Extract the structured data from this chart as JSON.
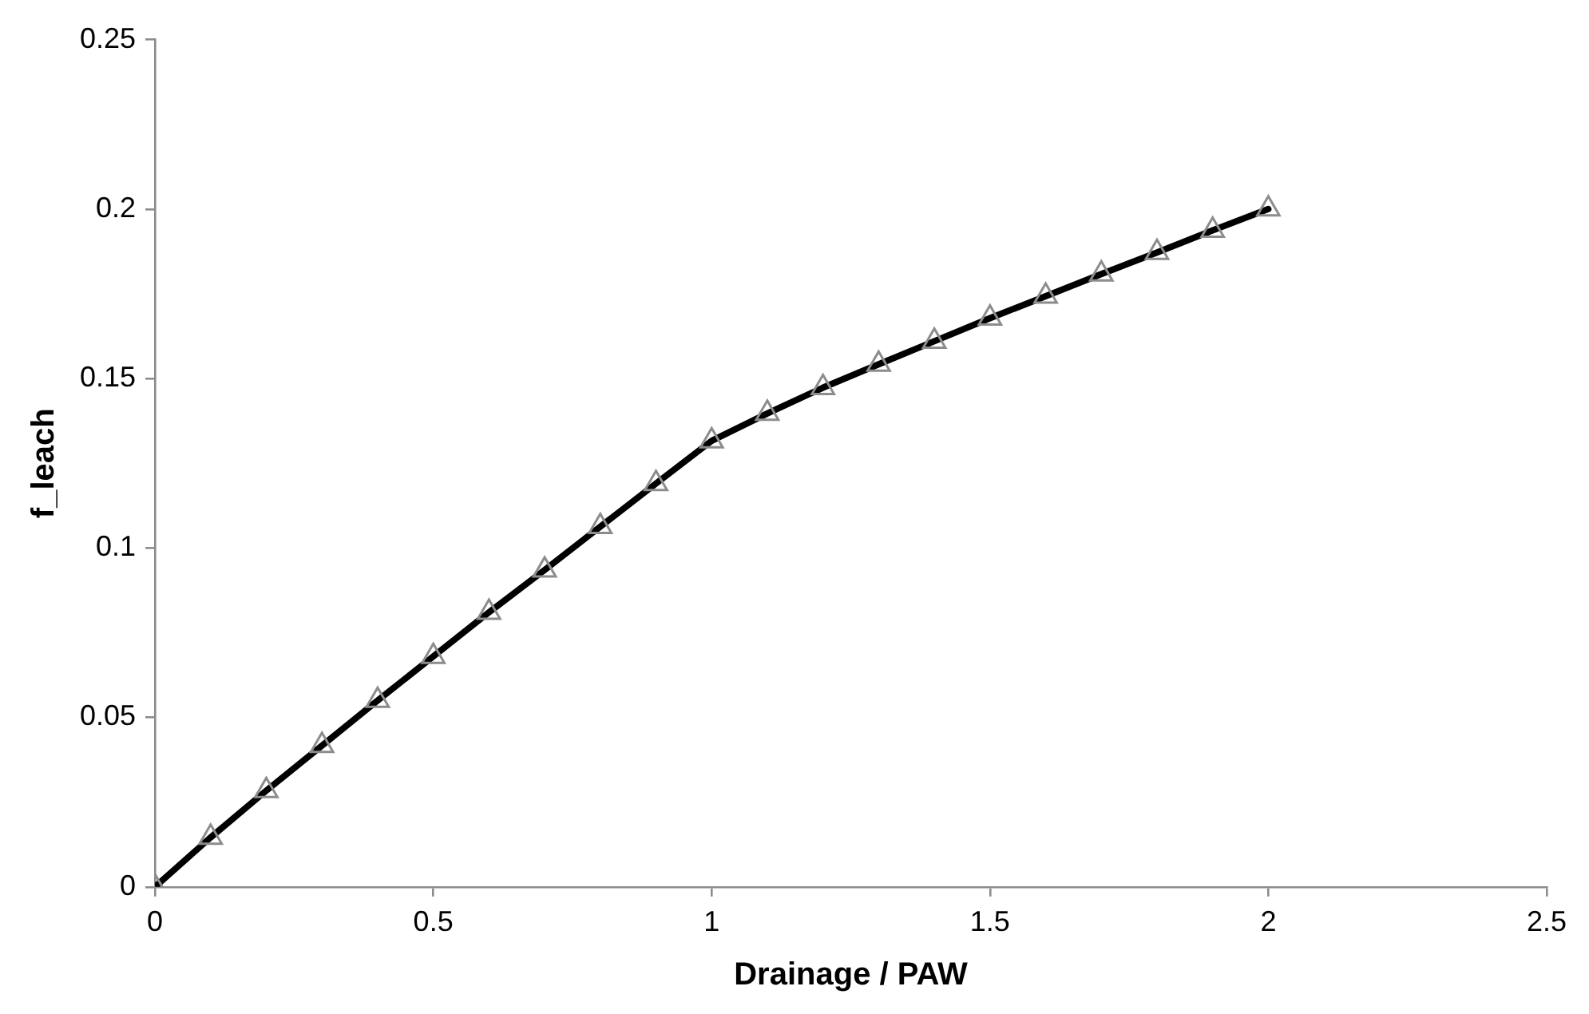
{
  "chart_data": {
    "type": "line",
    "xlabel": "Drainage / PAW",
    "ylabel": "f_leach",
    "x": [
      0,
      0.1,
      0.2,
      0.3,
      0.4,
      0.5,
      0.6,
      0.7,
      0.8,
      0.9,
      1.0,
      1.1,
      1.2,
      1.3,
      1.4,
      1.5,
      1.6,
      1.7,
      1.8,
      1.9,
      2.0
    ],
    "series": [
      {
        "color": "#000000",
        "values": [
          0,
          0.0146,
          0.0284,
          0.0417,
          0.055,
          0.068,
          0.081,
          0.0935,
          0.1063,
          0.119,
          0.1316,
          0.1397,
          0.1473,
          0.1542,
          0.161,
          0.1678,
          0.1743,
          0.1808,
          0.1872,
          0.1937,
          0.2
        ]
      }
    ],
    "xlim": [
      0,
      2.5
    ],
    "xticks": [
      0,
      0.5,
      1,
      1.5,
      2,
      2.5
    ],
    "ylim": [
      0,
      0.25
    ],
    "yticks": [
      0,
      0.05,
      0.1,
      0.15,
      0.2,
      0.25
    ],
    "grid": false,
    "legend": false,
    "marker": "triangle",
    "line_style": "solid"
  }
}
